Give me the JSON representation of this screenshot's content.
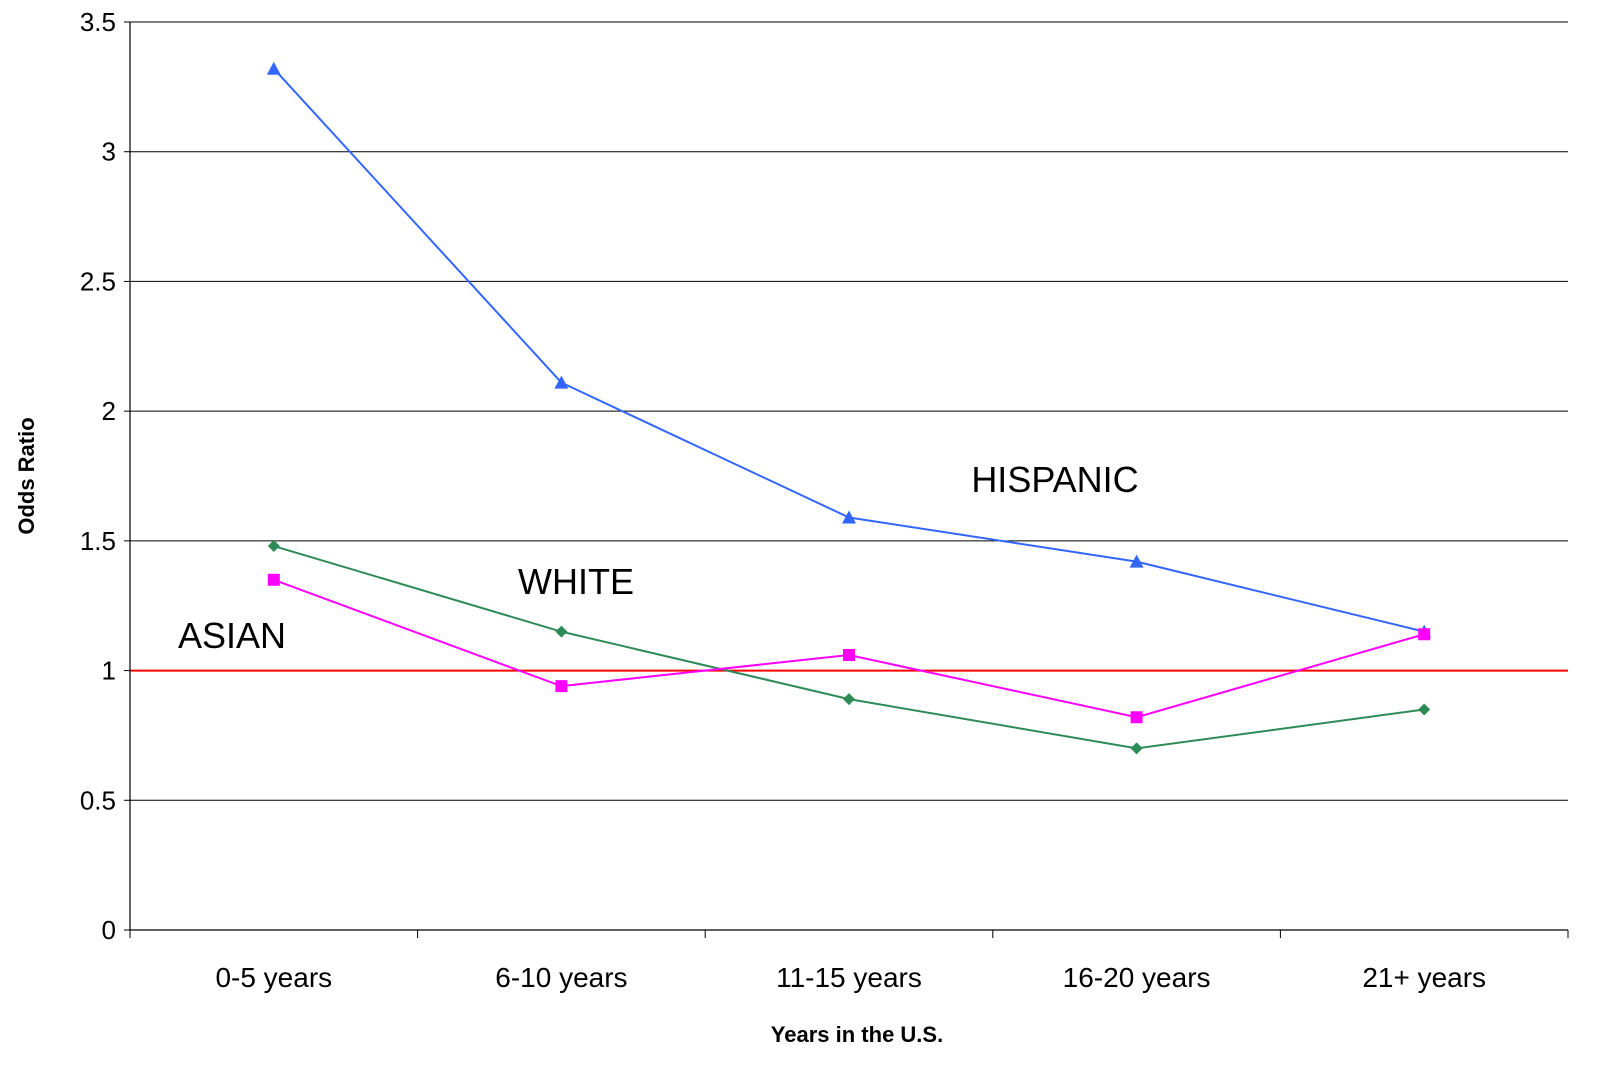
{
  "chart_data": {
    "type": "line",
    "title": "",
    "xlabel": "Years in the U.S.",
    "ylabel": "Odds Ratio",
    "categories": [
      "0-5 years",
      "6-10 years",
      "11-15 years",
      "16-20 years",
      "21+ years"
    ],
    "ylim": [
      0,
      3.5
    ],
    "yticks": [
      0,
      0.5,
      1,
      1.5,
      2,
      2.5,
      3,
      3.5
    ],
    "ytick_labels": [
      "0",
      "0.5",
      "1",
      "1.5",
      "2",
      "2.5",
      "3",
      "3.5"
    ],
    "grid": true,
    "legend": "none (series labeled inline)",
    "reference_line": {
      "value": 1,
      "color": "#ff0000"
    },
    "series": [
      {
        "name": "HISPANIC",
        "values": [
          3.32,
          2.11,
          1.59,
          1.42,
          1.15
        ],
        "color": "#3366ff",
        "marker": "triangle"
      },
      {
        "name": "WHITE",
        "values": [
          1.48,
          1.15,
          0.89,
          0.7,
          0.85
        ],
        "color": "#2e8b57",
        "marker": "diamond"
      },
      {
        "name": "ASIAN",
        "values": [
          1.35,
          0.94,
          1.06,
          0.82,
          1.14
        ],
        "color": "#ff00ff",
        "marker": "square"
      }
    ],
    "annotations": [
      "HISPANIC",
      "WHITE",
      "ASIAN"
    ]
  }
}
